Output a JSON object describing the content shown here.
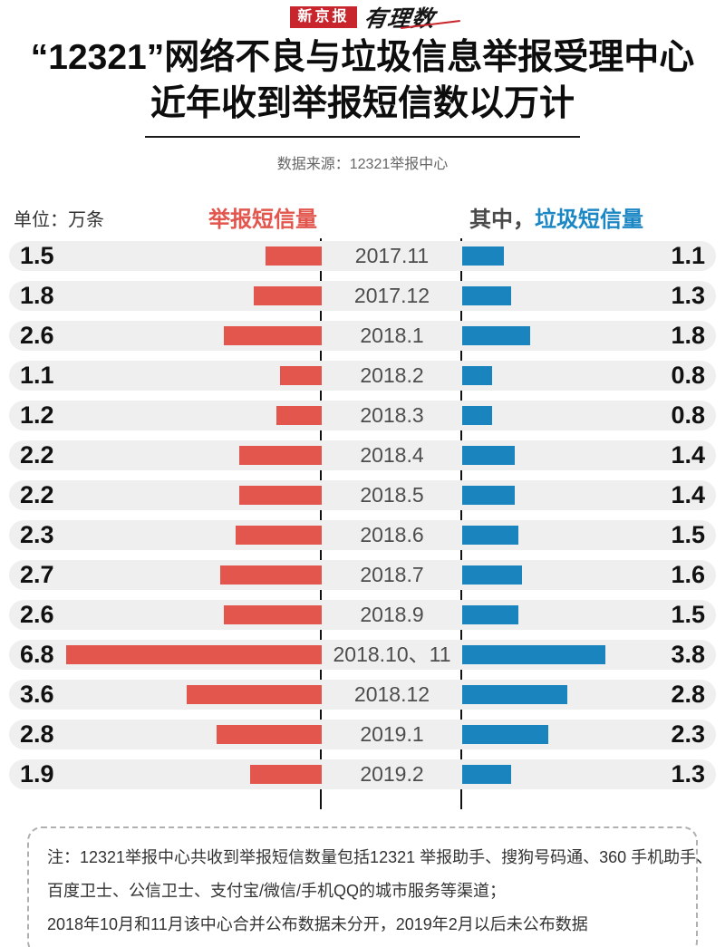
{
  "logo": {
    "masthead": "新京报",
    "sub_brand": "有理数"
  },
  "header": {
    "title_line1": "“12321”网络不良与垃圾信息举报受理中心",
    "title_line2": "近年收到举报短信数以万计",
    "source": "数据来源：12321举报中心"
  },
  "legend": {
    "unit_label": "单位：万条",
    "left_label": "举报短信量",
    "right_prefix": "其中，",
    "right_label": "垃圾短信量"
  },
  "colors": {
    "reported_bar": "#e2564e",
    "spam_bar": "#1a84bf",
    "row_background": "#efefef",
    "masthead_red": "#c8252c",
    "spam_text_blue": "#1b87c4"
  },
  "chart_data": {
    "type": "bar",
    "orientation": "horizontal-diverging",
    "title": "“12321”网络不良与垃圾信息举报受理中心近年收到举报短信数以万计",
    "unit": "万条",
    "categories": [
      "2017.11",
      "2017.12",
      "2018.1",
      "2018.2",
      "2018.3",
      "2018.4",
      "2018.5",
      "2018.6",
      "2018.7",
      "2018.9",
      "2018.10、11",
      "2018.12",
      "2019.1",
      "2019.2"
    ],
    "series": [
      {
        "name": "举报短信量",
        "side": "left",
        "color": "#e2564e",
        "values": [
          1.5,
          1.8,
          2.6,
          1.1,
          1.2,
          2.2,
          2.2,
          2.3,
          2.7,
          2.6,
          6.8,
          3.6,
          2.8,
          1.9
        ]
      },
      {
        "name": "垃圾短信量",
        "side": "right",
        "color": "#1a84bf",
        "values": [
          1.1,
          1.3,
          1.8,
          0.8,
          0.8,
          1.4,
          1.4,
          1.5,
          1.6,
          1.5,
          3.8,
          2.8,
          2.3,
          1.3
        ]
      }
    ],
    "rows": [
      {
        "period": "2017.11",
        "reported": 1.5,
        "spam": 1.1
      },
      {
        "period": "2017.12",
        "reported": 1.8,
        "spam": 1.3
      },
      {
        "period": "2018.1",
        "reported": 2.6,
        "spam": 1.8
      },
      {
        "period": "2018.2",
        "reported": 1.1,
        "spam": 0.8
      },
      {
        "period": "2018.3",
        "reported": 1.2,
        "spam": 0.8
      },
      {
        "period": "2018.4",
        "reported": 2.2,
        "spam": 1.4
      },
      {
        "period": "2018.5",
        "reported": 2.2,
        "spam": 1.4
      },
      {
        "period": "2018.6",
        "reported": 2.3,
        "spam": 1.5
      },
      {
        "period": "2018.7",
        "reported": 2.7,
        "spam": 1.6
      },
      {
        "period": "2018.9",
        "reported": 2.6,
        "spam": 1.5
      },
      {
        "period": "2018.10、11",
        "reported": 6.8,
        "spam": 3.8
      },
      {
        "period": "2018.12",
        "reported": 3.6,
        "spam": 2.8
      },
      {
        "period": "2019.1",
        "reported": 2.8,
        "spam": 2.3
      },
      {
        "period": "2019.2",
        "reported": 1.9,
        "spam": 1.3
      }
    ]
  },
  "note": {
    "line1": "注：12321举报中心共收到举报短信数量包括12321 举报助手、搜狗号码通、360 手机助手、",
    "line2": "百度卫士、公信卫士、支付宝/微信/手机QQ的城市服务等渠道；",
    "line3": "2018年10月和11月该中心合并公布数据未分开，2019年2月以后未公布数据"
  }
}
